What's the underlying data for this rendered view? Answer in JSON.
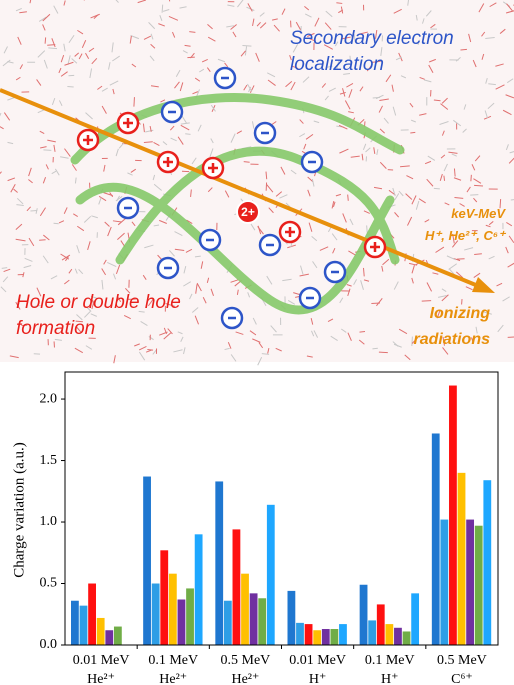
{
  "illustration": {
    "secondary": [
      "Secondary electron",
      "localization"
    ],
    "hole": [
      "Hole or double hole",
      "formation"
    ],
    "beam": [
      "keV-MeV",
      "H⁺, He²⁺, C⁶⁺"
    ],
    "ionizing": [
      "Ionizing",
      "radiations"
    ],
    "double_hole": "2+"
  },
  "chart_data": {
    "type": "bar",
    "ylabel": "Charge variation (a.u.)",
    "categories": [
      "0.01 MeV",
      "0.1 MeV",
      "0.5 MeV",
      "0.01 MeV",
      "0.1 MeV",
      "0.5 MeV"
    ],
    "category_ions": [
      "He²⁺",
      "He²⁺",
      "He²⁺",
      "H⁺",
      "H⁺",
      "C⁶⁺"
    ],
    "series": [
      {
        "color": "#1f77d0",
        "values": [
          0.36,
          1.37,
          1.33,
          0.44,
          0.49,
          1.72
        ]
      },
      {
        "color": "#2e9ee6",
        "values": [
          0.32,
          0.5,
          0.36,
          0.18,
          0.2,
          1.02
        ]
      },
      {
        "color": "#ff1010",
        "values": [
          0.5,
          0.77,
          0.94,
          0.17,
          0.33,
          2.11
        ]
      },
      {
        "color": "#ffc000",
        "values": [
          0.22,
          0.58,
          0.58,
          0.12,
          0.17,
          1.4
        ]
      },
      {
        "color": "#7030a0",
        "values": [
          0.12,
          0.37,
          0.42,
          0.13,
          0.14,
          1.02
        ]
      },
      {
        "color": "#70ad47",
        "values": [
          0.15,
          0.46,
          0.38,
          0.13,
          0.11,
          0.97
        ]
      },
      {
        "color": "#1ea7ff",
        "values": [
          null,
          0.9,
          1.14,
          0.17,
          0.42,
          1.34
        ]
      }
    ],
    "ylim": [
      0,
      2.22
    ],
    "yticks": [
      {
        "value": 0,
        "label": "0.0"
      },
      {
        "value": 0.5,
        "label": "0.5"
      },
      {
        "value": 1,
        "label": "1.0"
      },
      {
        "value": 1.5,
        "label": "1.5"
      },
      {
        "value": 2,
        "label": "2.0"
      }
    ]
  }
}
